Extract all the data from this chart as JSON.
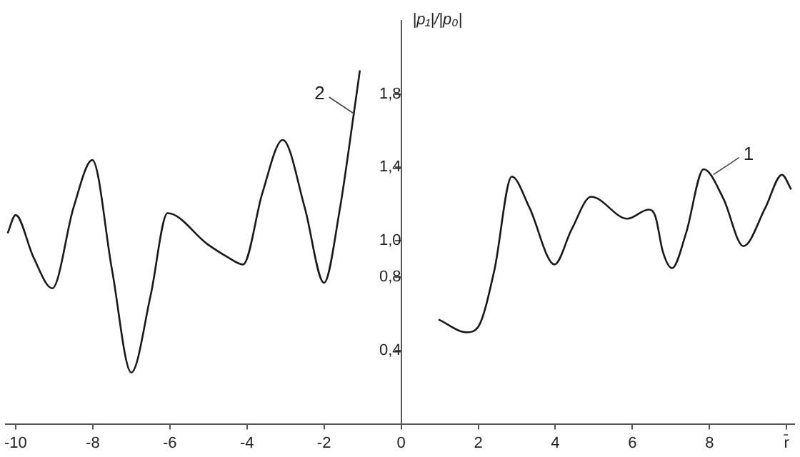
{
  "chart_data": {
    "type": "line",
    "ylabel": "|p₁|/|p₀|",
    "xlim": [
      -10.25,
      10.2
    ],
    "ylim": [
      0,
      2.2
    ],
    "xticks": [
      -10,
      -8,
      -6,
      -4,
      -2,
      0,
      2,
      4,
      6,
      8,
      {
        "value": 10,
        "label": "r̄"
      }
    ],
    "yticks": [
      {
        "value": 0.4,
        "label": "0,4"
      },
      {
        "value": 0.8,
        "label": "0,8"
      },
      {
        "value": 1.0,
        "label": "1,0"
      },
      {
        "value": 1.4,
        "label": "1,4"
      },
      {
        "value": 1.8,
        "label": "1,8"
      }
    ],
    "grid": false,
    "marker": "none",
    "line_style": "solid",
    "series": [
      {
        "color": "#1a1a1a",
        "x": [
          0.97,
          1.7,
          2.0,
          2.42,
          2.87,
          3.33,
          3.98,
          4.42,
          4.93,
          5.87,
          6.42,
          6.6,
          6.79,
          7.03,
          7.39,
          7.85,
          8.36,
          8.88,
          9.45,
          9.88,
          10.12
        ],
        "values": [
          0.57,
          0.5,
          0.53,
          0.84,
          1.35,
          1.18,
          0.87,
          1.06,
          1.24,
          1.12,
          1.17,
          1.13,
          0.94,
          0.85,
          1.04,
          1.39,
          1.23,
          0.97,
          1.18,
          1.36,
          1.28
        ]
      },
      {
        "color": "#1a1a1a",
        "x": [
          -10.21,
          -10.0,
          -9.54,
          -9.05,
          -8.5,
          -8.01,
          -7.5,
          -7.0,
          -6.5,
          -6.06,
          -5.02,
          -4.5,
          -4.1,
          -3.6,
          -3.07,
          -2.5,
          -2.0,
          -1.6,
          -1.23,
          -1.07
        ],
        "values": [
          1.04,
          1.14,
          0.91,
          0.74,
          1.18,
          1.44,
          0.84,
          0.28,
          0.7,
          1.15,
          0.98,
          0.91,
          0.87,
          1.26,
          1.55,
          1.18,
          0.77,
          1.16,
          1.69,
          1.93
        ]
      }
    ],
    "annotations": [
      {
        "text": "1",
        "x": 8.1,
        "y": 1.36
      },
      {
        "text": "2",
        "x": -1.2,
        "y": 1.69
      }
    ]
  }
}
